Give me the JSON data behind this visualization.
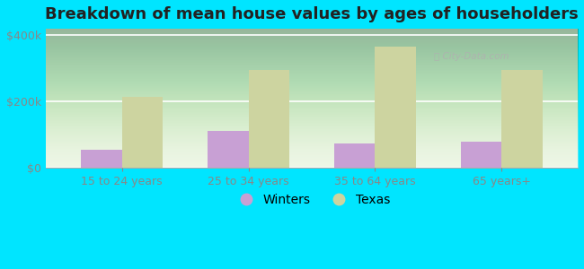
{
  "title": "Breakdown of mean house values by ages of householders",
  "categories": [
    "15 to 24 years",
    "25 to 34 years",
    "35 to 64 years",
    "65 years+"
  ],
  "winters_values": [
    55000,
    110000,
    72000,
    78000
  ],
  "texas_values": [
    215000,
    295000,
    365000,
    295000
  ],
  "winters_color": "#c8a0d4",
  "texas_color": "#cdd4a0",
  "background_top_color": "#f0f8ec",
  "background_bottom_color": "#d8eec8",
  "outer_background": "#00e5ff",
  "ylim": [
    0,
    420000
  ],
  "ytick_labels": [
    "$0",
    "$200k",
    "$400k"
  ],
  "ytick_values": [
    0,
    200000,
    400000
  ],
  "bar_width": 0.32,
  "legend_labels": [
    "Winters",
    "Texas"
  ],
  "title_fontsize": 13,
  "watermark_text": "Ⓢ City-Data.com"
}
